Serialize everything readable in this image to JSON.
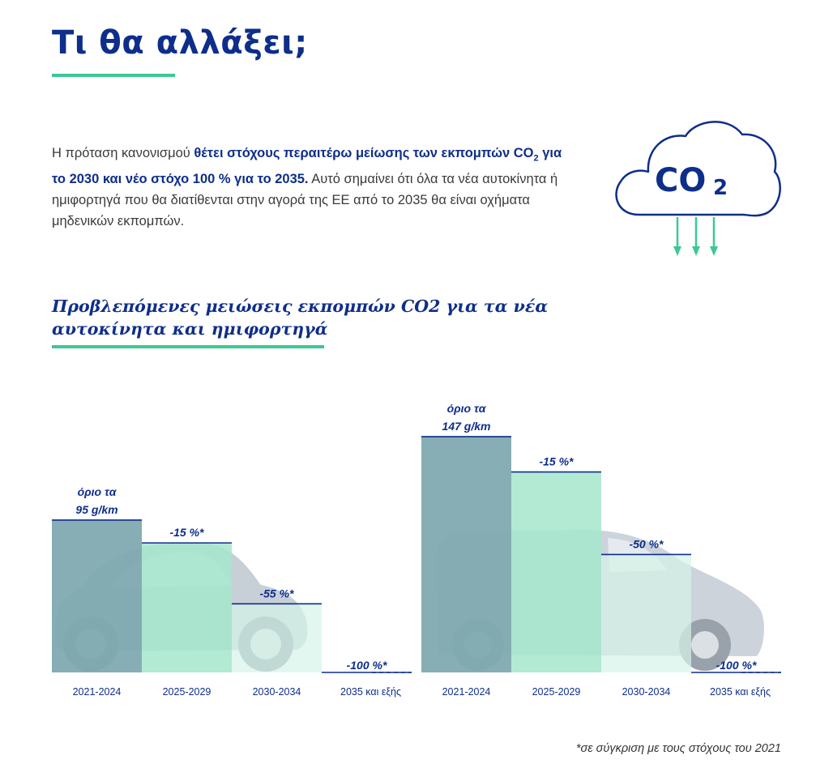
{
  "page": {
    "title": "Τι θα αλλάξει;",
    "intro": {
      "t1": "Η πρόταση κανονισμού ",
      "h1": "θέτει στόχους περαιτέρω μείωσης των εκπομπών CO",
      "h1_sub": "2",
      "h2": " για το 2030 και νέο στόχο 100 % για το 2035.",
      "t2": " Αυτό σημαίνει ότι όλα τα νέα αυτοκίνητα ή ημιφορτηγά που θα διατίθενται στην αγορά της ΕΕ από το 2035 θα είναι οχήματα μηδενικών εκπομπών."
    },
    "cloud_label": "CO",
    "cloud_sub": "2",
    "chart_heading": "Προβλεπόμενες μειώσεις εκπομπών CO2 για τα νέα αυτοκίνητα και ημιφορτηγά",
    "footnote": "*σε σύγκριση με τους στόχους του 2021"
  },
  "colors": {
    "navy": "#0e2e8a",
    "green_accent": "#3cc894",
    "bar_base": "#7faab0",
    "bar_mid": "#a5e6cc",
    "bar_light": "#d6f3e8"
  },
  "chart_data": [
    {
      "type": "bar",
      "vehicle": "car",
      "categories": [
        "2021-2024",
        "2025-2029",
        "2030-2034",
        "2035 και εξής"
      ],
      "values": [
        95,
        80.75,
        42.75,
        0
      ],
      "labels": [
        "όριο τα\n95 g/km",
        "-15 %*",
        "-55 %*",
        "-100 %*"
      ],
      "reductions_percent": [
        0,
        -15,
        -55,
        -100
      ],
      "ylim": [
        0,
        150
      ]
    },
    {
      "type": "bar",
      "vehicle": "van",
      "categories": [
        "2021-2024",
        "2025-2029",
        "2030-2034",
        "2035 και εξής"
      ],
      "values": [
        147,
        124.95,
        73.5,
        0
      ],
      "labels": [
        "όριο τα\n147 g/km",
        "-15 %*",
        "-50 %*",
        "-100 %*"
      ],
      "reductions_percent": [
        0,
        -15,
        -50,
        -100
      ],
      "ylim": [
        0,
        150
      ]
    }
  ]
}
